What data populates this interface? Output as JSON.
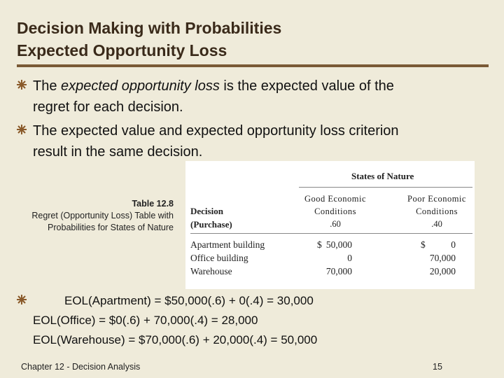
{
  "title": {
    "line1": "Decision Making with Probabilities",
    "line2": "Expected Opportunity Loss"
  },
  "bullets": [
    {
      "pre": "The ",
      "em": "expected opportunity loss",
      "post": " is the expected value of the",
      "line2": "regret for each decision."
    },
    {
      "line1": "The expected value and expected opportunity loss criterion",
      "line2": "result in the same decision."
    }
  ],
  "table_caption": {
    "number": "Table 12.8",
    "text": "Regret (Opportunity Loss) Table with Probabilities for States of Nature"
  },
  "table": {
    "states_header": "States of Nature",
    "decision_label": "Decision",
    "purchase_label": "(Purchase)",
    "columns": [
      {
        "line1": "Good Economic",
        "line2": "Conditions",
        "prob": ".60"
      },
      {
        "line1": "Poor Economic",
        "line2": "Conditions",
        "prob": ".40"
      }
    ],
    "rows": [
      {
        "decision": "Apartment building",
        "good_sym": "$",
        "good": "50,000",
        "poor_sym": "$",
        "poor": "0"
      },
      {
        "decision": "Office building",
        "good_sym": "",
        "good": "0",
        "poor_sym": "",
        "poor": "70,000"
      },
      {
        "decision": "Warehouse",
        "good_sym": "",
        "good": "70,000",
        "poor_sym": "",
        "poor": "20,000"
      }
    ]
  },
  "eol": {
    "apartment": "EOL(Apartment) = $50,000(.6) + 0(.4) = 30,000",
    "office": "EOL(Office) =  $0(.6) + 70,000(.4) = 28,000",
    "warehouse": "EOL(Warehouse) = $70,000(.6) + 20,000(.4) = 50,000"
  },
  "footer": {
    "left": "Chapter 12 - Decision Analysis",
    "page": "15"
  },
  "colors": {
    "background": "#efebda",
    "title": "#3a2a1a",
    "rule": "#7a5a36",
    "bullet": "#8a5a2a"
  }
}
